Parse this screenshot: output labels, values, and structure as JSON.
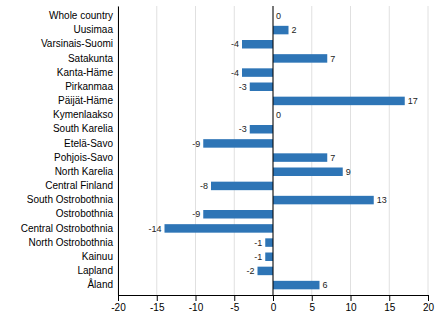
{
  "chart_data": {
    "type": "bar",
    "orientation": "horizontal",
    "categories": [
      "Whole country",
      "Uusimaa",
      "Varsinais-Suomi",
      "Satakunta",
      "Kanta-Häme",
      "Pirkanmaa",
      "Päijät-Häme",
      "Kymenlaakso",
      "South Karelia",
      "Etelä-Savo",
      "Pohjois-Savo",
      "North Karelia",
      "Central Finland",
      "South Ostrobothnia",
      "Ostrobothnia",
      "Central Ostrobothnia",
      "North Ostrobothnia",
      "Kainuu",
      "Lapland",
      "Åland"
    ],
    "values": [
      0,
      2,
      -4,
      7,
      -4,
      -3,
      17,
      0,
      -3,
      -9,
      7,
      9,
      -8,
      13,
      -9,
      -14,
      -1,
      -1,
      -2,
      6
    ],
    "color": "#2e75b6",
    "xlim": [
      -20,
      20
    ],
    "xticks": [
      -20,
      -15,
      -10,
      -5,
      0,
      5,
      10,
      15,
      20
    ],
    "grid": true,
    "data_labels": true
  }
}
